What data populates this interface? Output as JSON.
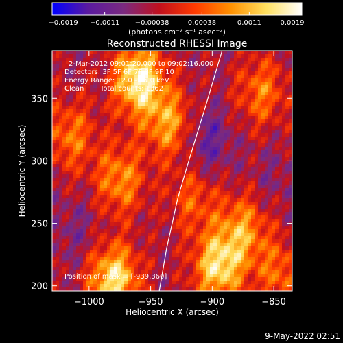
{
  "chart_data": {
    "type": "heatmap",
    "title": "Reconstructed RHESSI Image",
    "xlabel": "Heliocentric X (arcsec)",
    "ylabel": "Heliocentric Y (arcsec)",
    "xlim": [
      -1030,
      -835
    ],
    "ylim": [
      196,
      388
    ],
    "x_ticks": [
      -1000,
      -950,
      -900,
      -850
    ],
    "x_tick_labels": [
      "−1000",
      "−950",
      "−900",
      "−850"
    ],
    "y_ticks": [
      200,
      250,
      300,
      350
    ],
    "y_tick_labels": [
      "200",
      "250",
      "300",
      "350"
    ],
    "colorbar": {
      "min": -0.0019,
      "max": 0.0019,
      "ticks": [
        -0.0019,
        -0.0011,
        -0.00038,
        0.00038,
        0.0011,
        0.0019
      ],
      "tick_labels": [
        "−0.0019",
        "−0.0011",
        "−0.00038",
        "0.00038",
        "0.0011",
        "0.0019"
      ],
      "units_label": "(photons cm⁻² s⁻¹ asec⁻²)",
      "colormap": [
        "#0000ff",
        "#5a1aa0",
        "#7a2a80",
        "#c0101e",
        "#ff3a00",
        "#ff9000",
        "#ffe060",
        "#ffffff"
      ]
    },
    "annotations": {
      "time_range": "2-Mar-2012 09:01:20.000 to 09:02:16.000",
      "detectors": "Detectors: 3F 5F 6F 7F 8F 9F 10",
      "energy": "Energy Range: 12.0 - 25.0 keV",
      "clean": "Clean",
      "total_counts": "Total counts: 1362",
      "position": "Position of mask = [-939,360]"
    },
    "limb_curve": [
      [
        -943,
        196
      ],
      [
        -937,
        230
      ],
      [
        -928,
        270
      ],
      [
        -919,
        300
      ],
      [
        -905,
        345
      ],
      [
        -892,
        388
      ]
    ],
    "hot_spots": [
      {
        "x": -980,
        "y": 205,
        "v": 0.0015
      },
      {
        "x": -960,
        "y": 365,
        "v": 0.0017
      },
      {
        "x": -935,
        "y": 330,
        "v": 0.0009
      },
      {
        "x": -975,
        "y": 285,
        "v": 0.0008
      },
      {
        "x": -1015,
        "y": 320,
        "v": 0.0006
      },
      {
        "x": -895,
        "y": 215,
        "v": 0.0014
      },
      {
        "x": -875,
        "y": 245,
        "v": 0.0008
      },
      {
        "x": -860,
        "y": 355,
        "v": 0.0006
      },
      {
        "x": -915,
        "y": 270,
        "v": 0.0004
      },
      {
        "x": -845,
        "y": 210,
        "v": 0.0005
      }
    ],
    "cold_spots": [
      {
        "x": -905,
        "y": 315,
        "v": -0.0012
      },
      {
        "x": -1010,
        "y": 245,
        "v": -0.0008
      },
      {
        "x": -850,
        "y": 285,
        "v": -0.0007
      }
    ]
  },
  "footer": {
    "timestamp": "9-May-2022 02:51"
  }
}
